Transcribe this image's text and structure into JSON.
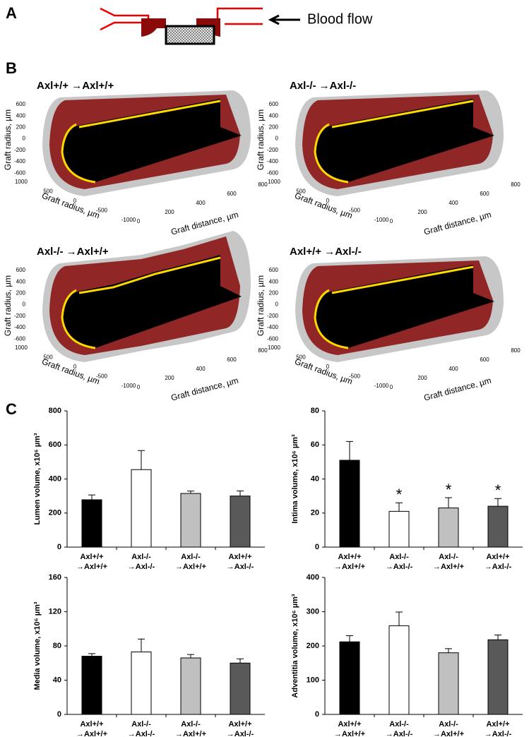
{
  "panel_labels": [
    "A",
    "B",
    "C"
  ],
  "panel_a": {
    "label": "Blood flow"
  },
  "panel_b": {
    "axis_labels": {
      "z": "Graft radius, µm",
      "y": "Graft radius, µm",
      "x": "Graft distance, µm"
    },
    "z_ticks": [
      600,
      400,
      200,
      0,
      -200,
      -400,
      -600
    ],
    "y_ticks": [
      1000,
      500,
      0,
      -500,
      -1000
    ],
    "x_ticks": [
      0,
      200,
      400,
      600,
      800
    ],
    "plots": [
      {
        "title": "Axl+/+ →Axl+/+"
      },
      {
        "title": "Axl-/- →Axl-/-"
      },
      {
        "title": "Axl-/- →Axl+/+"
      },
      {
        "title": "Axl+/+ →Axl-/-"
      }
    ]
  },
  "chart_data": [
    {
      "type": "bar",
      "ylabel": "Lumen volume, x10⁶ µm³",
      "categories": [
        "Axl+/+\n→Axl+/+",
        "Axl-/-\n→Axl-/-",
        "Axl-/-\n→Axl+/+",
        "Axl+/+\n→Axl-/-"
      ],
      "values": [
        278,
        455,
        315,
        300
      ],
      "errors": [
        28,
        112,
        14,
        30
      ],
      "colors": [
        "#000000",
        "#ffffff",
        "#c0c0c0",
        "#595959"
      ],
      "ylim": [
        0,
        800
      ],
      "yticks": [
        0,
        200,
        400,
        600,
        800
      ]
    },
    {
      "type": "bar",
      "ylabel": "Intima volume, x10⁶ µm³",
      "categories": [
        "Axl+/+\n→Axl+/+",
        "Axl-/-\n→Axl-/-",
        "Axl-/-\n→Axl+/+",
        "Axl+/+\n→Axl-/-"
      ],
      "values": [
        51,
        21,
        23,
        24
      ],
      "errors": [
        11,
        5,
        6,
        4.5
      ],
      "annotations": [
        null,
        "*",
        "*",
        "*"
      ],
      "colors": [
        "#000000",
        "#ffffff",
        "#c0c0c0",
        "#595959"
      ],
      "ylim": [
        0,
        80
      ],
      "yticks": [
        0,
        20,
        40,
        60,
        80
      ]
    },
    {
      "type": "bar",
      "ylabel": "Media volume, x10⁶ µm³",
      "categories": [
        "Axl+/+\n→Axl+/+",
        "Axl-/-\n→Axl-/-",
        "Axl-/-\n→Axl+/+",
        "Axl+/+\n→Axl-/-"
      ],
      "values": [
        68,
        73,
        66,
        60
      ],
      "errors": [
        3,
        15,
        4,
        5
      ],
      "colors": [
        "#000000",
        "#ffffff",
        "#c0c0c0",
        "#595959"
      ],
      "ylim": [
        0,
        160
      ],
      "yticks": [
        0,
        40,
        80,
        120,
        160
      ]
    },
    {
      "type": "bar",
      "ylabel": "Adventitia volume, x10⁶ µm³",
      "categories": [
        "Axl+/+\n→Axl+/+",
        "Axl-/-\n→Axl-/-",
        "Axl-/-\n→Axl+/+",
        "Axl+/+\n→Axl-/-"
      ],
      "values": [
        212,
        259,
        180,
        218
      ],
      "errors": [
        18,
        40,
        12,
        14
      ],
      "colors": [
        "#000000",
        "#ffffff",
        "#c0c0c0",
        "#595959"
      ],
      "ylim": [
        0,
        400
      ],
      "yticks": [
        0,
        100,
        200,
        300,
        400
      ]
    }
  ]
}
